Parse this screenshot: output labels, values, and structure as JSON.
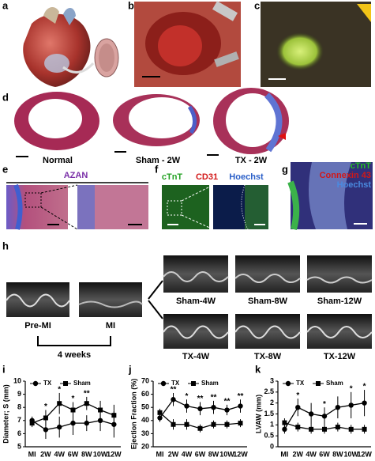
{
  "panel_letters": [
    "a",
    "b",
    "c",
    "d",
    "e",
    "f",
    "g",
    "h",
    "i",
    "j",
    "k"
  ],
  "d": {
    "captions": [
      "Normal",
      "Sham - 2W",
      "TX - 2W"
    ]
  },
  "e": {
    "stain": "AZAN"
  },
  "f": {
    "stains": [
      "cTnT",
      "CD31",
      "Hoechst"
    ]
  },
  "g": {
    "stains": [
      "cTnT",
      "Connexin 43",
      "Hoechst"
    ]
  },
  "h": {
    "before": "Pre-MI",
    "after": "MI",
    "interval": "4 weeks",
    "sham": [
      "Sham-4W",
      "Sham-8W",
      "Sham-12W"
    ],
    "tx": [
      "TX-4W",
      "TX-8W",
      "TX-12W"
    ]
  },
  "chart_data": [
    {
      "type": "line",
      "ylabel": "Diameter; S (mm)",
      "categories": [
        "MI",
        "2W",
        "4W",
        "6W",
        "8W",
        "10W",
        "12W"
      ],
      "ylim": [
        5,
        10
      ],
      "yticks": [
        5,
        6,
        7,
        8,
        9,
        10
      ],
      "series": [
        {
          "name": "TX",
          "color": "#000000",
          "marker": "circle",
          "values": [
            7.0,
            6.3,
            6.5,
            6.8,
            6.8,
            7.0,
            6.7
          ],
          "errors": [
            0.3,
            0.7,
            0.8,
            0.9,
            0.6,
            0.8,
            1.0
          ]
        },
        {
          "name": "Sham",
          "color": "#000000",
          "marker": "square",
          "values": [
            6.8,
            7.2,
            8.3,
            7.8,
            8.3,
            7.8,
            7.4
          ],
          "errors": [
            0.3,
            0.6,
            0.8,
            0.6,
            0.5,
            0.7,
            0.8
          ]
        }
      ],
      "annotations": [
        {
          "category": "2W",
          "text": "*"
        },
        {
          "category": "4W",
          "text": "*"
        },
        {
          "category": "6W",
          "text": "*"
        },
        {
          "category": "8W",
          "text": "**"
        }
      ]
    },
    {
      "type": "line",
      "ylabel": "Ejection Fraction (%)",
      "categories": [
        "MI",
        "2W",
        "4W",
        "6W",
        "8W",
        "10W",
        "12W"
      ],
      "ylim": [
        20,
        70
      ],
      "yticks": [
        20,
        30,
        40,
        50,
        60,
        70
      ],
      "series": [
        {
          "name": "TX",
          "color": "#000000",
          "marker": "circle",
          "values": [
            42,
            56,
            51,
            49,
            50,
            48,
            51
          ],
          "errors": [
            3,
            5,
            5,
            5,
            5,
            4,
            5
          ]
        },
        {
          "name": "Sham",
          "color": "#000000",
          "marker": "square",
          "values": [
            46,
            37,
            37,
            34,
            37,
            37,
            38
          ],
          "errors": [
            3,
            4,
            4,
            3,
            3,
            3,
            3
          ]
        }
      ],
      "annotations": [
        {
          "category": "2W",
          "text": "**"
        },
        {
          "category": "4W",
          "text": "*"
        },
        {
          "category": "6W",
          "text": "**"
        },
        {
          "category": "8W",
          "text": "**"
        },
        {
          "category": "10W",
          "text": "**"
        },
        {
          "category": "12W",
          "text": "**"
        }
      ]
    },
    {
      "type": "line",
      "ylabel": "LVAW (mm)",
      "categories": [
        "MI",
        "2W",
        "4W",
        "6W",
        "8W",
        "10W",
        "12W"
      ],
      "ylim": [
        0,
        3
      ],
      "yticks": [
        0,
        0.5,
        1,
        1.5,
        2,
        2.5,
        3
      ],
      "series": [
        {
          "name": "TX",
          "color": "#000000",
          "marker": "circle",
          "values": [
            0.8,
            1.8,
            1.5,
            1.4,
            1.8,
            1.9,
            2.0
          ],
          "errors": [
            0.2,
            0.4,
            0.5,
            0.4,
            0.5,
            0.6,
            0.6
          ]
        },
        {
          "name": "Sham",
          "color": "#000000",
          "marker": "square",
          "values": [
            1.1,
            0.9,
            0.8,
            0.8,
            0.9,
            0.8,
            0.8
          ],
          "errors": [
            0.2,
            0.2,
            0.2,
            0.2,
            0.2,
            0.2,
            0.2
          ]
        }
      ],
      "annotations": [
        {
          "category": "2W",
          "text": "*"
        },
        {
          "category": "6W",
          "text": "*"
        },
        {
          "category": "10W",
          "text": "*"
        },
        {
          "category": "12W",
          "text": "*"
        }
      ]
    }
  ]
}
